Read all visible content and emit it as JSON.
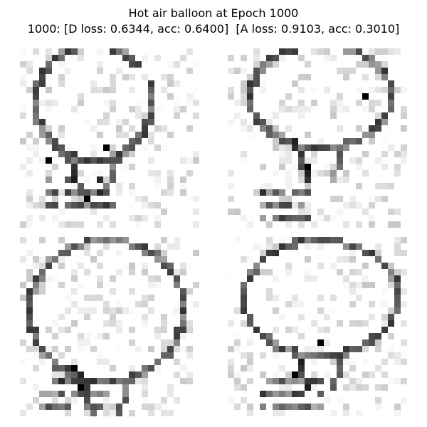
{
  "figure": {
    "title_line1": "Hot air balloon at Epoch 1000",
    "title_line2": "1000: [D loss: 0.6344, acc: 0.6400]  [A loss: 0.9103, acc: 0.3010]"
  },
  "grid": {
    "rows": 2,
    "cols": 2,
    "colormap": "gray_r"
  },
  "samples": [
    {
      "id": "sample-1",
      "subject": "hot-air-balloon-sketch"
    },
    {
      "id": "sample-2",
      "subject": "hot-air-balloon-sketch"
    },
    {
      "id": "sample-3",
      "subject": "hot-air-balloon-sketch"
    },
    {
      "id": "sample-4",
      "subject": "hot-air-balloon-sketch"
    }
  ]
}
